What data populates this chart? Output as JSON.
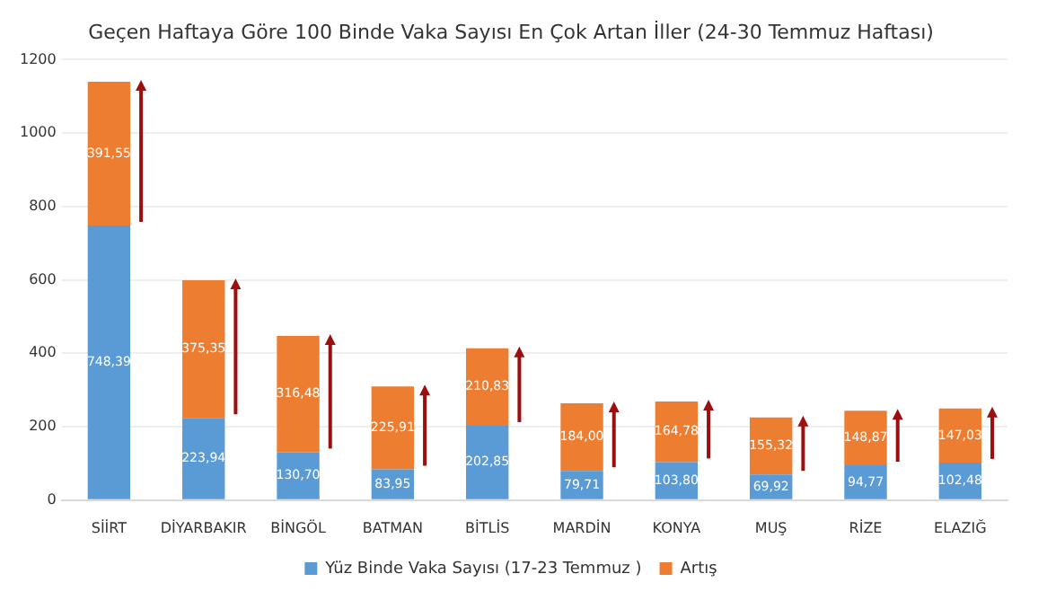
{
  "chart_data": {
    "type": "bar",
    "title": "Geçen Haftaya Göre 100 Binde Vaka Sayısı En Çok Artan İller (24-30 Temmuz Haftası)",
    "categories": [
      "SİİRT",
      "DİYARBAKIR",
      "BİNGÖL",
      "BATMAN",
      "BİTLİS",
      "MARDİN",
      "KONYA",
      "MUŞ",
      "RİZE",
      "ELAZIĞ"
    ],
    "stacked": true,
    "series": [
      {
        "name": "Yüz Binde Vaka Sayısı (17-23 Temmuz )",
        "color": "#5b9bd5",
        "values": [
          748.39,
          223.94,
          130.7,
          83.95,
          202.85,
          79.71,
          103.8,
          69.92,
          94.77,
          102.48
        ],
        "value_labels": [
          "748,39",
          "223,94",
          "130,70",
          "83,95",
          "202,85",
          "79,71",
          "103,80",
          "69,92",
          "94,77",
          "102,48"
        ]
      },
      {
        "name": "Artış",
        "color": "#ed7d31",
        "values": [
          391.55,
          375.35,
          316.48,
          225.91,
          210.83,
          184.0,
          164.78,
          155.32,
          148.87,
          147.03
        ],
        "value_labels": [
          "391,55",
          "375,35",
          "316,48",
          "225,91",
          "210,83",
          "184,00",
          "164,78",
          "155,32",
          "148,87",
          "147,03"
        ]
      }
    ],
    "ylim": [
      0,
      1200
    ],
    "yticks": [
      0,
      200,
      400,
      600,
      800,
      1000,
      1200
    ],
    "grid": "y",
    "legend": "bottom"
  }
}
